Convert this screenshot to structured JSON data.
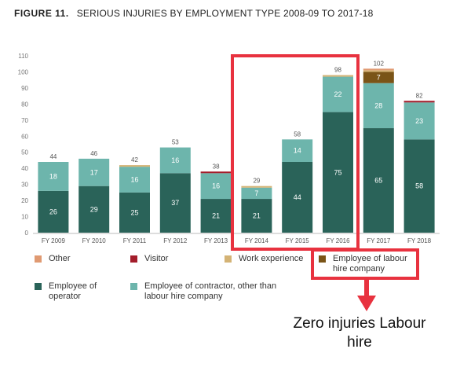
{
  "figure": {
    "number": "FIGURE 11.",
    "title": "SERIOUS INJURIES BY EMPLOYMENT TYPE 2008-09 TO 2017-18"
  },
  "chart_data": {
    "type": "bar",
    "stacked": true,
    "categories": [
      "FY 2009",
      "FY 2010",
      "FY 2011",
      "FY 2012",
      "FY 2013",
      "FY 2014",
      "FY 2015",
      "FY 2016",
      "FY 2017",
      "FY 2018"
    ],
    "ylim": [
      0,
      110
    ],
    "yticks": [
      0,
      10,
      20,
      30,
      40,
      50,
      60,
      70,
      80,
      90,
      100,
      110
    ],
    "totals": [
      44,
      46,
      42,
      53,
      38,
      29,
      58,
      98,
      102,
      82
    ],
    "series": [
      {
        "name": "Employee of operator",
        "color": "#2a6359",
        "values": [
          26,
          29,
          25,
          37,
          21,
          21,
          44,
          75,
          65,
          58
        ],
        "labels": [
          "26",
          "29",
          "25",
          "37",
          "21",
          "21",
          "44",
          "75",
          "65",
          "58"
        ]
      },
      {
        "name": "Employee of contractor, other than labour hire company",
        "color": "#6db5ac",
        "values": [
          18,
          17,
          16,
          16,
          16,
          7,
          14,
          22,
          28,
          23
        ],
        "labels": [
          "18",
          "17",
          "16",
          "16",
          "16",
          "7",
          "14",
          "22",
          "28",
          "23"
        ]
      },
      {
        "name": "Employee of labour hire company",
        "color": "#7a5417",
        "values": [
          0,
          0,
          0,
          0,
          0,
          0,
          0,
          0,
          7,
          0
        ],
        "labels": [
          "",
          "",
          "",
          "",
          "",
          "",
          "",
          "",
          "7",
          ""
        ]
      },
      {
        "name": "Work experience",
        "color": "#d4b375",
        "values": [
          0,
          0,
          1,
          0,
          0,
          1,
          0,
          1,
          1,
          0
        ],
        "labels": [
          "",
          "",
          "",
          "",
          "",
          "",
          "",
          "",
          "",
          ""
        ]
      },
      {
        "name": "Visitor",
        "color": "#a31d2b",
        "values": [
          0,
          0,
          0,
          0,
          1,
          0,
          0,
          0,
          0,
          1
        ],
        "labels": [
          "",
          "",
          "",
          "",
          "",
          "",
          "",
          "",
          "",
          ""
        ]
      },
      {
        "name": "Other",
        "color": "#e09a72",
        "values": [
          0,
          0,
          0,
          0,
          0,
          0,
          0,
          0,
          1,
          0
        ],
        "labels": [
          "",
          "",
          "",
          "",
          "",
          "",
          "",
          "",
          "",
          ""
        ]
      }
    ],
    "legend": {
      "placement": "bottom",
      "items": [
        {
          "label": "Other",
          "color": "#e09a72"
        },
        {
          "label": "Visitor",
          "color": "#a31d2b"
        },
        {
          "label": "Work experience",
          "color": "#d4b375"
        },
        {
          "label": "Employee of labour hire company",
          "color": "#7a5417"
        },
        {
          "label": "Employee of operator",
          "color": "#2a6359"
        },
        {
          "label": "Employee of contractor, other than labour hire company",
          "color": "#6db5ac"
        }
      ]
    },
    "annotation": {
      "text": "Zero injuries Labour hire",
      "highlight_categories": [
        "FY 2014",
        "FY 2015",
        "FY 2016"
      ],
      "highlight_color": "#e8323f"
    }
  }
}
